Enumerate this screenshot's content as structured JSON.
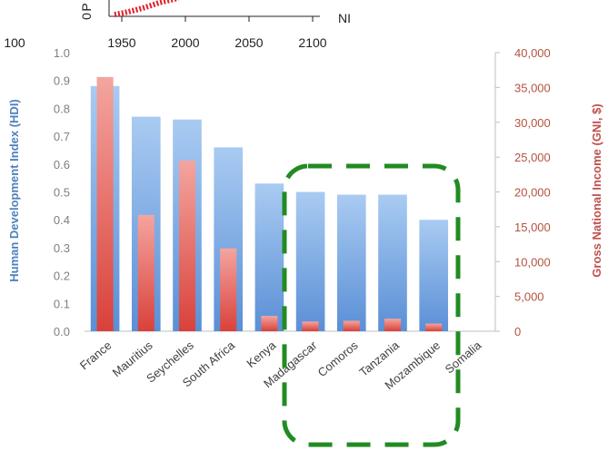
{
  "chart_data": [
    {
      "type": "line",
      "note_visible": "cropped inset plot at top",
      "xticks": [
        "100",
        "1950",
        "2000",
        "2050",
        "2100"
      ],
      "ylabel_fragment": "P",
      "ytick_fragment": "0",
      "xlabel_fragment": "NI",
      "series_color": "#e0202a"
    },
    {
      "type": "bar",
      "categories": [
        "France",
        "Mauritius",
        "Seychelles",
        "South Africa",
        "Kenya",
        "Madagascar",
        "Comoros",
        "Tanzania",
        "Mozambique",
        "Somalia"
      ],
      "series": [
        {
          "name": "Human Development Index (HDI)",
          "axis": "left",
          "color": "#8db4e2",
          "values": [
            0.88,
            0.77,
            0.76,
            0.66,
            0.53,
            0.5,
            0.49,
            0.49,
            0.4,
            null
          ]
        },
        {
          "name": "Gross National Income (GNI, $)",
          "axis": "right",
          "color": "#e8736c",
          "values": [
            36500,
            16700,
            24500,
            11900,
            2200,
            1400,
            1500,
            1800,
            1100,
            null
          ]
        }
      ],
      "ylabel": "Human Development Index (HDI)",
      "ylabel_right": "Gross National Income (GNI, $)",
      "ylim": [
        0,
        1.0
      ],
      "ylim_right": [
        0,
        40000
      ],
      "yticks_left": [
        "0.0",
        "0.1",
        "0.2",
        "0.3",
        "0.4",
        "0.5",
        "0.6",
        "0.7",
        "0.8",
        "0.9",
        "1.0"
      ],
      "yticks_right": [
        "0",
        "5,000",
        "10,000",
        "15,000",
        "20,000",
        "25,000",
        "30,000",
        "35,000",
        "40,000"
      ],
      "highlight": {
        "style": "dashed-rounded-box",
        "color": "#228b22",
        "categories": [
          "Madagascar",
          "Comoros",
          "Tanzania",
          "Mozambique",
          "Somalia"
        ]
      }
    }
  ]
}
